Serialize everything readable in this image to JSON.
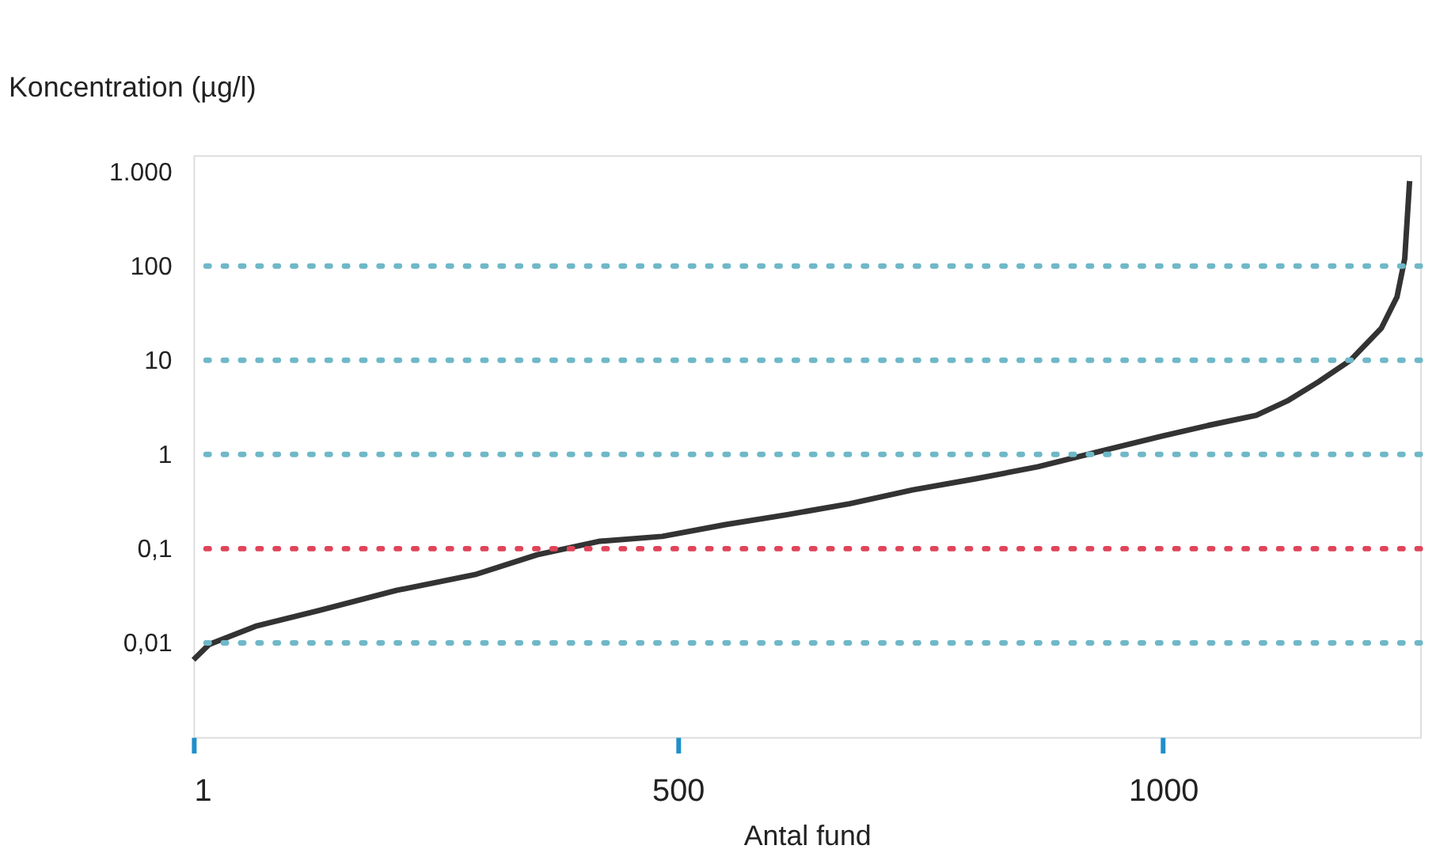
{
  "chart_data": {
    "type": "line",
    "xlabel": "Antal fund",
    "ylabel": "Koncentration (µg/l)",
    "log": "y",
    "xlim": [
      1,
      1265
    ],
    "xticks": [
      1,
      500,
      1000
    ],
    "ylim": [
      0.001,
      1500
    ],
    "yticks": [
      {
        "value": 1000,
        "label": "1.000"
      },
      100,
      10,
      1,
      {
        "value": 0.1,
        "label": "0,1"
      },
      {
        "value": 0.01,
        "label": "0,01"
      }
    ],
    "grid": false,
    "marker": "none",
    "line_style": "solid",
    "ref_lines": [
      {
        "axis": "y",
        "value": 0.01,
        "color": "#6fb8c8",
        "line_style": "dotted"
      },
      {
        "axis": "y",
        "value": 0.1,
        "color": "#e0445a",
        "line_style": "dotted"
      },
      {
        "axis": "y",
        "value": 1,
        "color": "#6fb8c8",
        "line_style": "dotted"
      },
      {
        "axis": "y",
        "value": 10,
        "color": "#6fb8c8",
        "line_style": "dotted"
      },
      {
        "axis": "y",
        "value": 100,
        "color": "#6fb8c8",
        "line_style": "dotted"
      }
    ],
    "series": [
      {
        "color": "#333333",
        "x": [
          1,
          17,
          65,
          130,
          210,
          291,
          355,
          420,
          484,
          549,
          613,
          677,
          742,
          806,
          871,
          935,
          999,
          1048,
          1096,
          1128,
          1160,
          1193,
          1225,
          1241,
          1249,
          1254
        ],
        "values": [
          0.0066,
          0.0096,
          0.015,
          0.022,
          0.036,
          0.053,
          0.086,
          0.12,
          0.135,
          0.18,
          0.23,
          0.3,
          0.42,
          0.55,
          0.74,
          1.08,
          1.57,
          2.05,
          2.6,
          3.7,
          5.9,
          10,
          22,
          47,
          120,
          800
        ]
      }
    ]
  }
}
